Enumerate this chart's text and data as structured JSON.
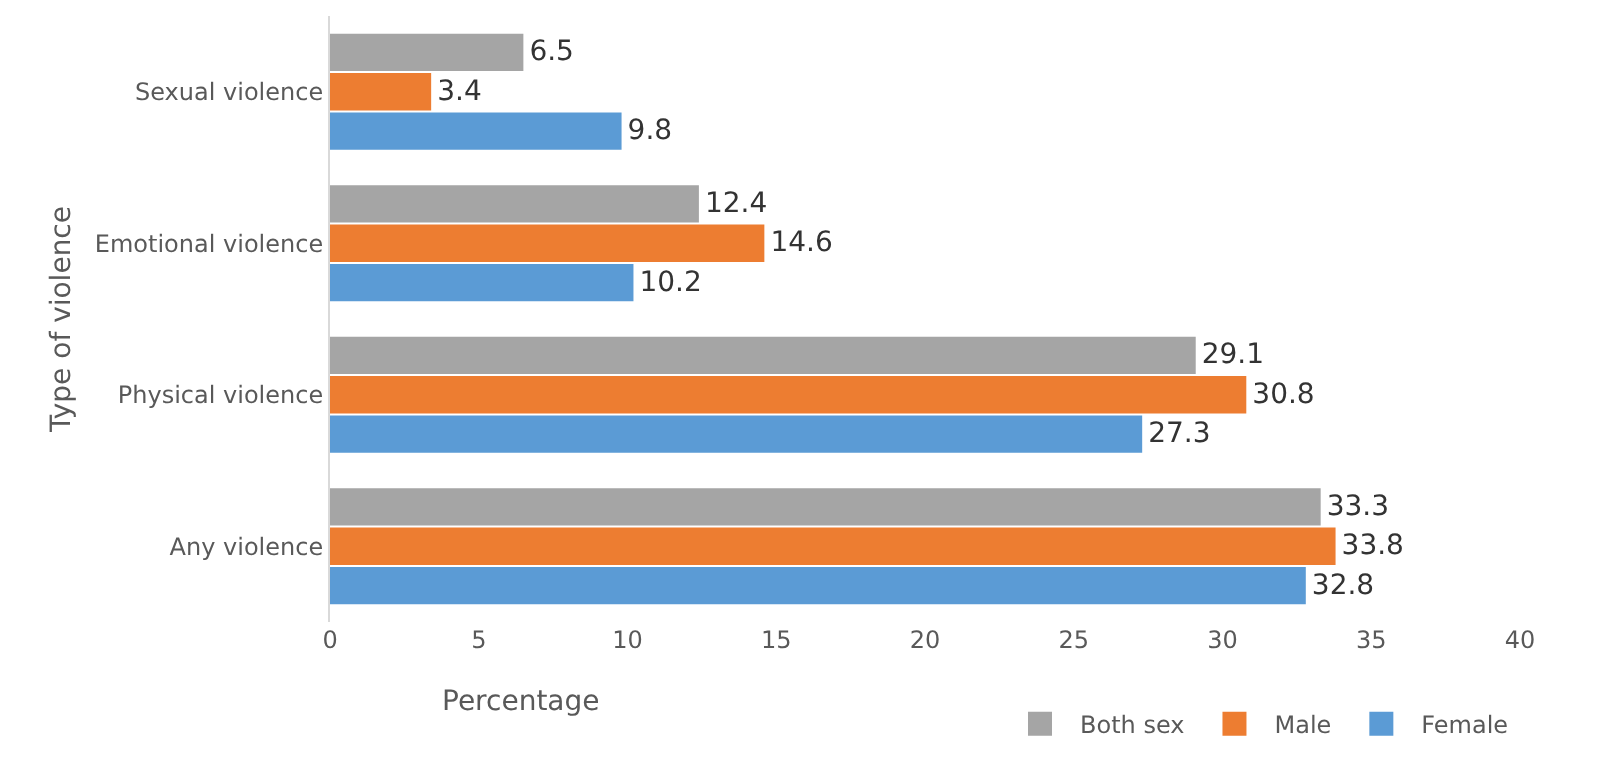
{
  "chart_data": {
    "type": "bar",
    "orientation": "horizontal",
    "xlabel": "Percentage",
    "ylabel": "Type of violence",
    "categories": [
      "Sexual violence",
      "Emotional violence",
      "Physical violence",
      "Any violence"
    ],
    "series": [
      {
        "name": "Both sex",
        "color": "#a5a5a5",
        "values": [
          6.5,
          12.4,
          29.1,
          33.3
        ]
      },
      {
        "name": "Male",
        "color": "#ed7d31",
        "values": [
          3.4,
          14.6,
          30.8,
          33.8
        ]
      },
      {
        "name": "Female",
        "color": "#5b9bd5",
        "values": [
          9.8,
          10.2,
          27.3,
          32.8
        ]
      }
    ],
    "xlim": [
      0,
      40
    ],
    "xticks": [
      0,
      5,
      10,
      15,
      20,
      25,
      30,
      35,
      40
    ],
    "data_labels": true,
    "grid": false,
    "legend": "bottom right"
  }
}
